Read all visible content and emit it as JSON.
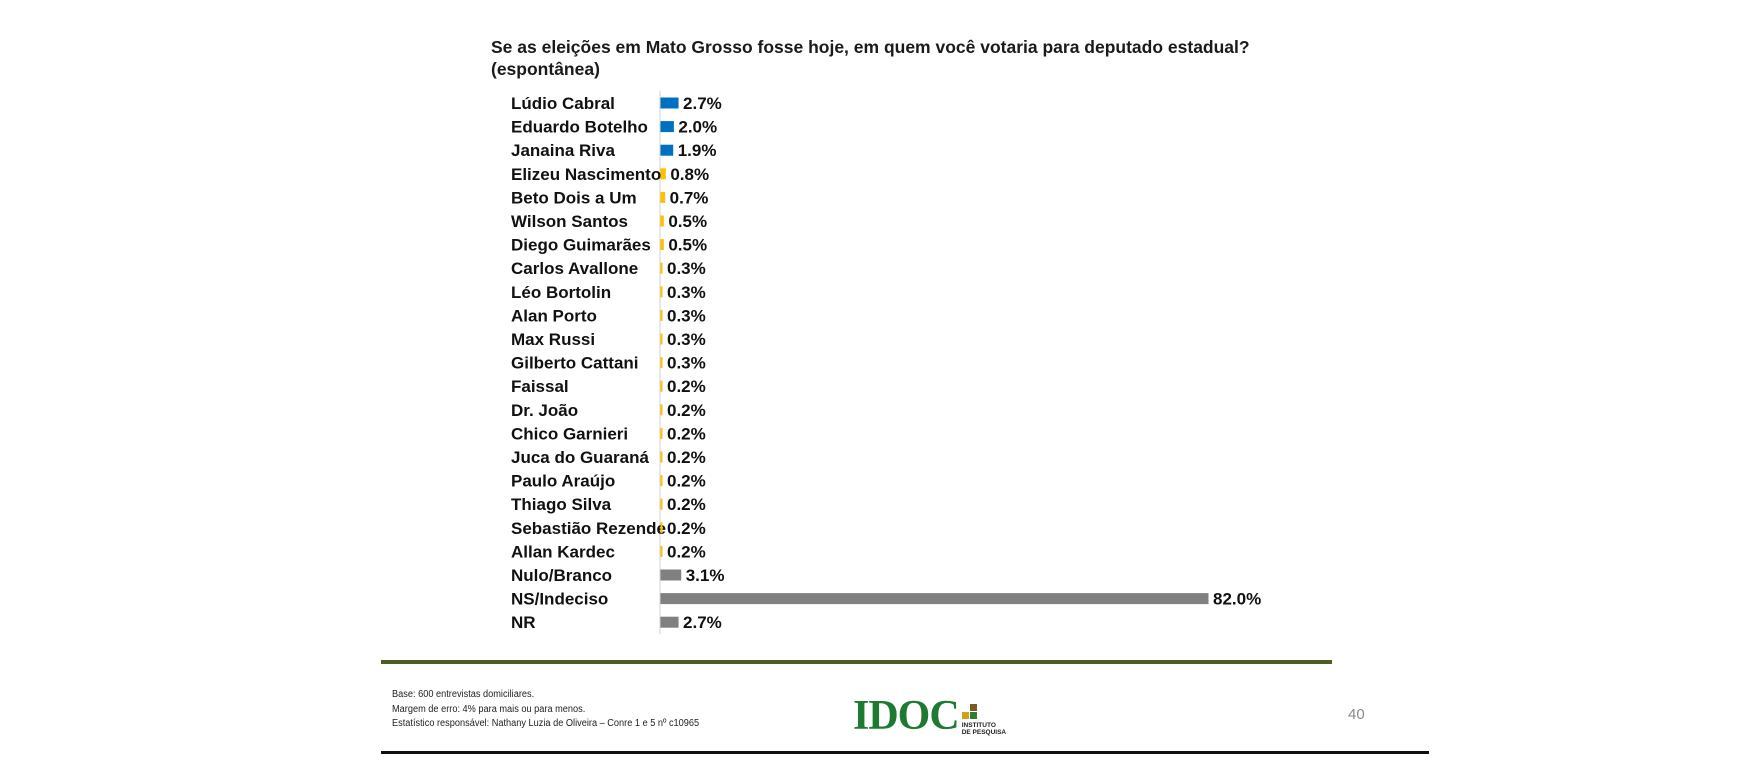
{
  "title": {
    "line1": "Se as eleições em Mato Grosso fosse hoje, em quem você votaria para deputado estadual?",
    "line2": "(espontânea)"
  },
  "chart_data": {
    "type": "bar",
    "orientation": "horizontal",
    "title": "Se as eleições em Mato Grosso fosse hoje, em quem você votaria para deputado estadual? (espontânea)",
    "xlim": [
      0,
      82
    ],
    "grid": false,
    "legend": "none",
    "categories": [
      "Lúdio Cabral",
      "Eduardo Botelho",
      "Janaina Riva",
      "Elizeu Nascimento",
      "Beto Dois a Um",
      "Wilson Santos",
      "Diego Guimarães",
      "Carlos Avallone",
      "Léo Bortolin",
      "Alan Porto",
      "Max Russi",
      "Gilberto Cattani",
      "Faissal",
      "Dr. João",
      "Chico Garnieri",
      "Juca do Guaraná",
      "Paulo Araújo",
      "Thiago Silva",
      "Sebastião Rezende",
      "Allan Kardec",
      "Nulo/Branco",
      "NS/Indeciso",
      "NR"
    ],
    "values": [
      2.7,
      2.0,
      1.9,
      0.8,
      0.7,
      0.5,
      0.5,
      0.3,
      0.3,
      0.3,
      0.3,
      0.3,
      0.2,
      0.2,
      0.2,
      0.2,
      0.2,
      0.2,
      0.2,
      0.2,
      3.1,
      82.0,
      2.7
    ],
    "value_labels": [
      "2.7%",
      "2.0%",
      "1.9%",
      "0.8%",
      "0.7%",
      "0.5%",
      "0.5%",
      "0.3%",
      "0.3%",
      "0.3%",
      "0.3%",
      "0.3%",
      "0.2%",
      "0.2%",
      "0.2%",
      "0.2%",
      "0.2%",
      "0.2%",
      "0.2%",
      "0.2%",
      "3.1%",
      "82.0%",
      "2.7%"
    ],
    "bar_colors": [
      "#0070c0",
      "#0070c0",
      "#0070c0",
      "#ffc000",
      "#ffc000",
      "#ffc000",
      "#ffc000",
      "#ffc000",
      "#ffc000",
      "#ffc000",
      "#ffc000",
      "#ffc000",
      "#ffc000",
      "#ffc000",
      "#ffc000",
      "#ffc000",
      "#ffc000",
      "#ffc000",
      "#ffc000",
      "#ffc000",
      "#808080",
      "#808080",
      "#808080"
    ]
  },
  "footer": {
    "notes": [
      "Base: 600 entrevistas domiciliares.",
      "Margem de erro: 4% para mais ou para menos.",
      "Estatístico responsável: Nathany Luzia de Oliveira – Conre 1 e 5 nº c10965"
    ],
    "logo_text": "IDOC",
    "logo_sub1": "INSTITUTO",
    "logo_sub2": "DE PESQUISA",
    "page_number": "40"
  },
  "colors": {
    "accent_green": "#1e7a32",
    "rule_green": "#4e5d23",
    "logo_square_brown": "#7a5a1e",
    "logo_square_gold": "#d4a017",
    "logo_square_green": "#2e7d32"
  }
}
